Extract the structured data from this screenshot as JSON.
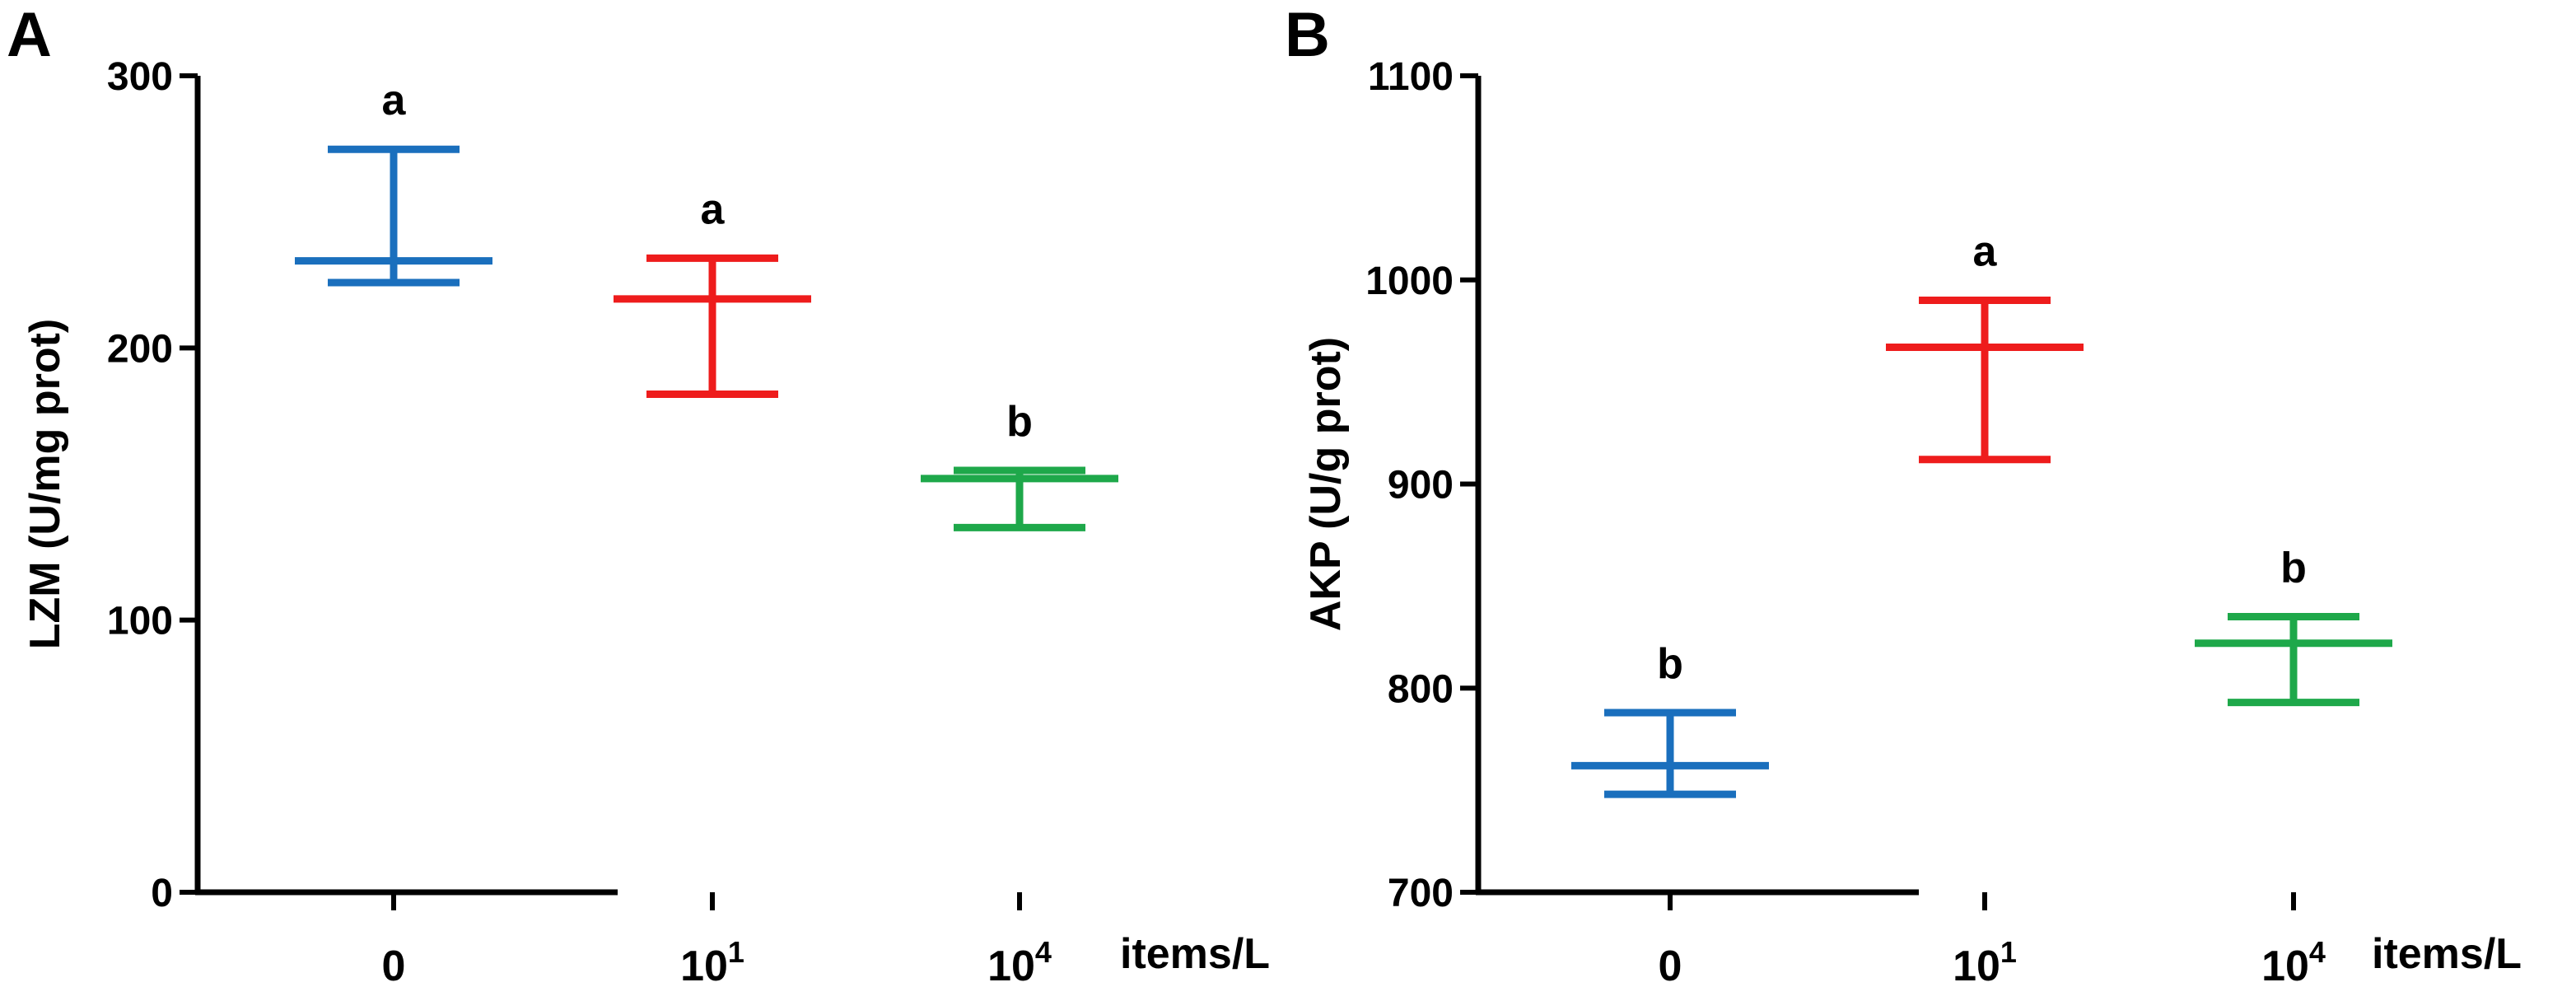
{
  "chart_data": [
    {
      "type": "scatter",
      "panel": "A",
      "ylabel": "LZM (U/mg prot)",
      "xunit": "items/L",
      "ylim": [
        0,
        300
      ],
      "yticks": [
        0,
        100,
        200,
        300
      ],
      "categories": [
        {
          "base": "0",
          "sup": ""
        },
        {
          "base": "10",
          "sup": "1"
        },
        {
          "base": "10",
          "sup": "4"
        }
      ],
      "groups": [
        {
          "mean": 232,
          "upper": 273,
          "lower": 224,
          "color": "#1a6fbd",
          "sig": "a"
        },
        {
          "mean": 218,
          "upper": 233,
          "lower": 183,
          "color": "#ee1c1c",
          "sig": "a"
        },
        {
          "mean": 152,
          "upper": 155,
          "lower": 134,
          "color": "#1ea84a",
          "sig": "b"
        }
      ]
    },
    {
      "type": "scatter",
      "panel": "B",
      "ylabel": "AKP (U/g prot)",
      "xunit": "items/L",
      "ylim": [
        700,
        1100
      ],
      "yticks": [
        700,
        800,
        900,
        1000,
        1100
      ],
      "categories": [
        {
          "base": "0",
          "sup": ""
        },
        {
          "base": "10",
          "sup": "1"
        },
        {
          "base": "10",
          "sup": "4"
        }
      ],
      "groups": [
        {
          "mean": 762,
          "upper": 788,
          "lower": 748,
          "color": "#1a6fbd",
          "sig": "b"
        },
        {
          "mean": 967,
          "upper": 990,
          "lower": 912,
          "color": "#ee1c1c",
          "sig": "a"
        },
        {
          "mean": 822,
          "upper": 835,
          "lower": 793,
          "color": "#1ea84a",
          "sig": "b"
        }
      ]
    }
  ]
}
